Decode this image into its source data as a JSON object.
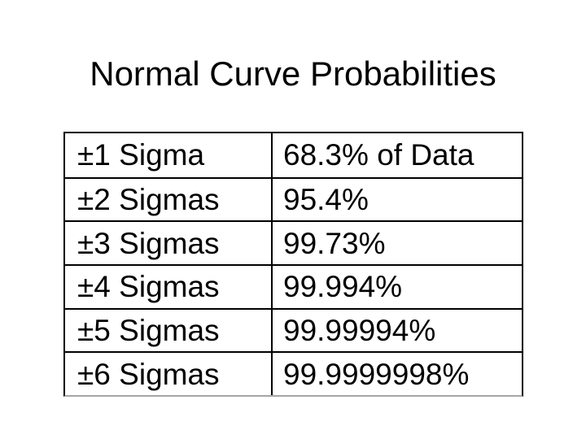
{
  "slide": {
    "title": "Normal Curve Probabilities",
    "background_color": "#ffffff",
    "text_color": "#000000",
    "table_border_color": "#000000",
    "table_bottom_edge_color": "#a6a6a6"
  },
  "chart_data": {
    "type": "table",
    "title": "Normal Curve Probabilities",
    "columns": [
      "sigma-range",
      "percent-of-data"
    ],
    "rows": [
      [
        "±1 Sigma",
        "68.3% of Data"
      ],
      [
        "±2 Sigmas",
        "95.4%"
      ],
      [
        "±3 Sigmas",
        "99.73%"
      ],
      [
        "±4 Sigmas",
        "99.994%"
      ],
      [
        "±5 Sigmas",
        "99.99994%"
      ],
      [
        "±6 Sigmas",
        "99.9999998%"
      ]
    ]
  }
}
